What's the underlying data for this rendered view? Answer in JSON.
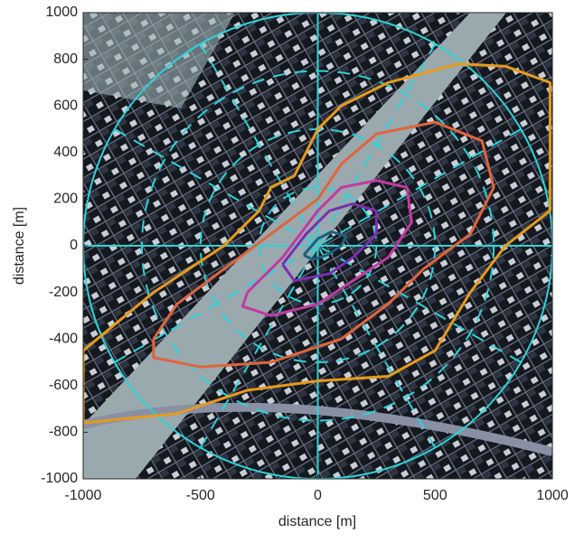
{
  "chart_data": {
    "type": "contour",
    "xlabel": "distance [m]",
    "ylabel": "distance [m]",
    "xlim": [
      -1000,
      1000
    ],
    "ylim": [
      -1000,
      1000
    ],
    "xticks": [
      -1000,
      -500,
      0,
      500,
      1000
    ],
    "yticks": [
      -1000,
      -800,
      -600,
      -400,
      -200,
      0,
      200,
      400,
      600,
      800,
      1000
    ],
    "series": [
      {
        "color": "#e69a1c",
        "x": [
          -1000,
          -700,
          -400,
          -250,
          -200,
          -100,
          -50,
          0,
          100,
          300,
          600,
          800,
          990,
          990,
          800,
          650,
          500,
          300,
          0,
          -300,
          -600,
          -1000,
          -1000
        ],
        "y": [
          -450,
          -200,
          0,
          150,
          250,
          300,
          400,
          500,
          600,
          700,
          780,
          770,
          700,
          150,
          0,
          -200,
          -450,
          -560,
          -580,
          -620,
          -720,
          -760,
          -450
        ]
      },
      {
        "color": "#e0643c",
        "x": [
          -700,
          -600,
          -400,
          -200,
          0,
          100,
          250,
          500,
          700,
          750,
          650,
          450,
          300,
          100,
          -200,
          -500,
          -700,
          -700
        ],
        "y": [
          -400,
          -250,
          -100,
          50,
          200,
          350,
          480,
          530,
          450,
          250,
          50,
          -100,
          -250,
          -400,
          -500,
          -520,
          -480,
          -400
        ]
      },
      {
        "color": "#c23aa0",
        "x": [
          -300,
          -150,
          0,
          100,
          250,
          380,
          400,
          300,
          150,
          0,
          -200,
          -320,
          -300
        ],
        "y": [
          -200,
          -50,
          150,
          250,
          280,
          250,
          100,
          -50,
          -150,
          -250,
          -300,
          -260,
          -200
        ]
      },
      {
        "color": "#7b2fb0",
        "x": [
          -150,
          -50,
          50,
          150,
          250,
          250,
          150,
          50,
          -100,
          -150
        ],
        "y": [
          -80,
          50,
          150,
          180,
          150,
          50,
          -50,
          -120,
          -150,
          -80
        ]
      },
      {
        "color": "#1f5f78",
        "x": [
          -60,
          0,
          60,
          120,
          100,
          40,
          -20,
          -60
        ],
        "y": [
          -40,
          30,
          60,
          40,
          0,
          -40,
          -60,
          -40
        ]
      }
    ]
  }
}
